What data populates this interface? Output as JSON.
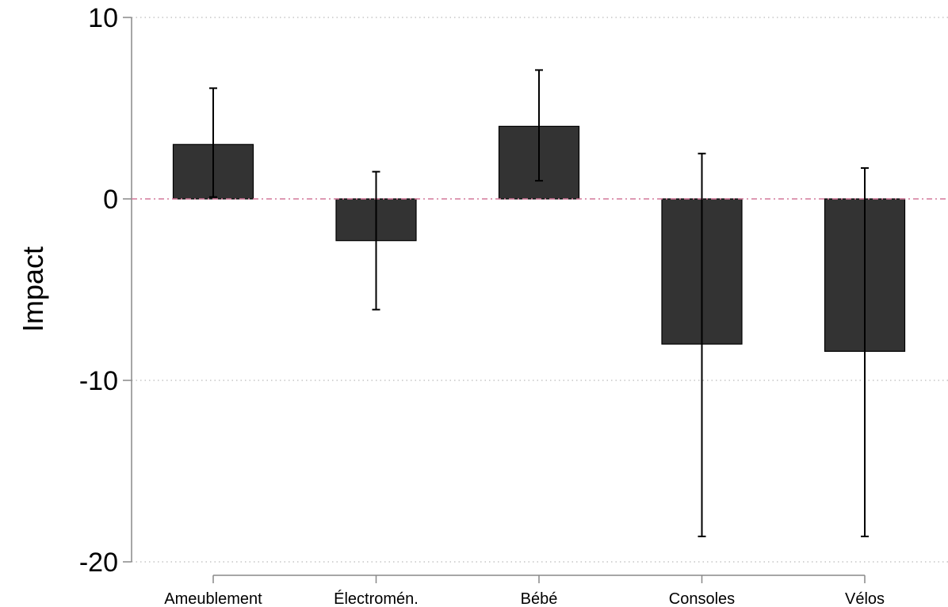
{
  "chart_data": {
    "type": "bar",
    "title": "",
    "xlabel": "",
    "ylabel": "Impact",
    "ylim": [
      -20,
      10
    ],
    "yticks": [
      10,
      0,
      -10,
      -20
    ],
    "ytick_labels": [
      "10",
      "0",
      "-10",
      "-20"
    ],
    "grid": "horizontal dotted",
    "reference_line": {
      "y": 0,
      "style": "dashed",
      "color": "#d4789a"
    },
    "categories": [
      "Ameublement",
      "Électromén.",
      "Bébé",
      "Consoles",
      "Vélos"
    ],
    "series": [
      {
        "values": [
          3.0,
          -2.3,
          4.0,
          -8.0,
          -8.4
        ],
        "ci_low": [
          0.1,
          -6.1,
          1.0,
          -18.6,
          -18.6
        ],
        "ci_high": [
          6.1,
          1.5,
          7.1,
          2.5,
          1.7
        ]
      }
    ],
    "colors": {
      "bar_fill": "#333333",
      "bar_stroke": "#000000",
      "error_bar": "#000000",
      "grid": "#bbbbbb",
      "axis": "#888888"
    }
  }
}
